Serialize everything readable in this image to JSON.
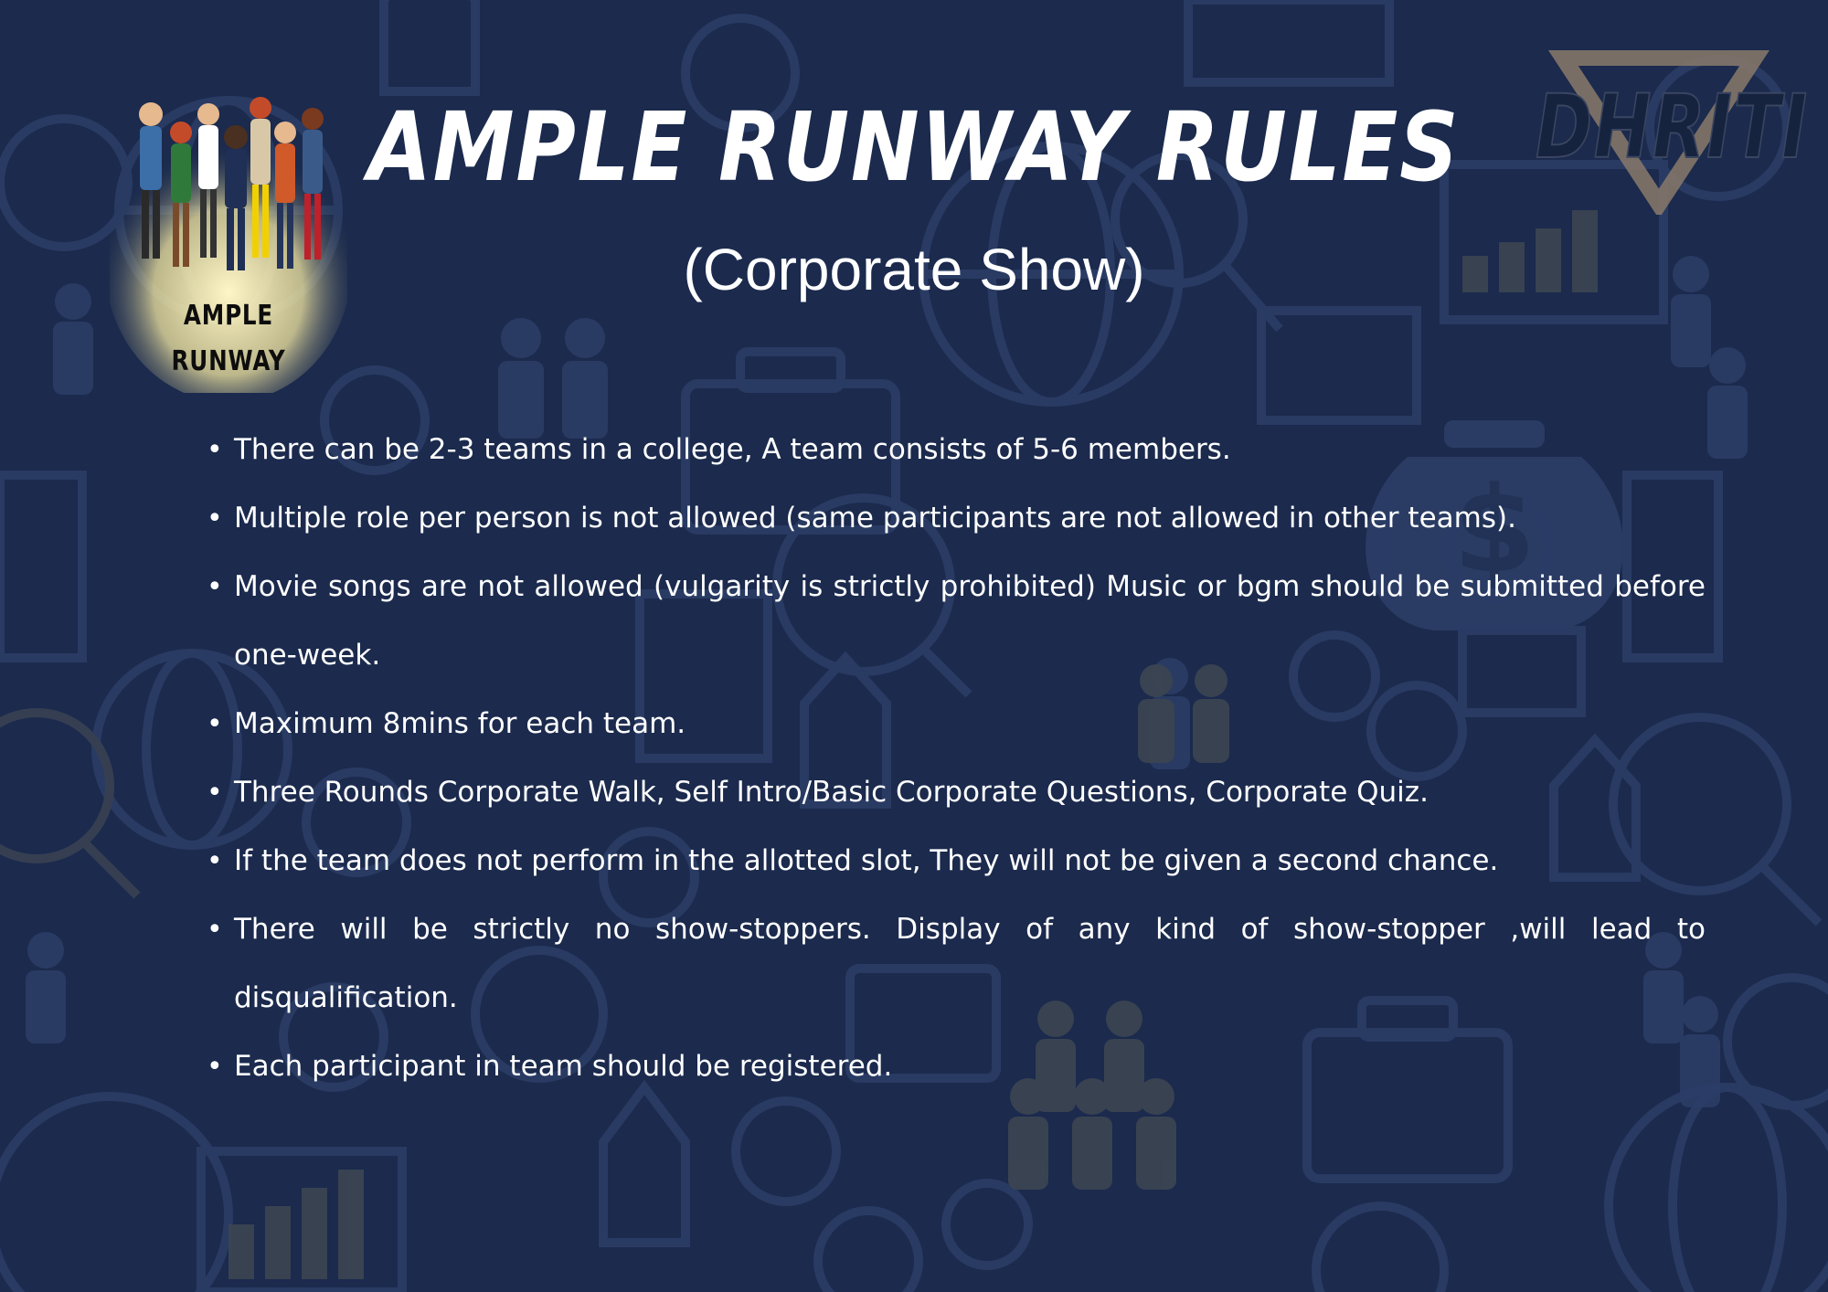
{
  "header": {
    "title": "AMPLE RUNWAY RULES",
    "subtitle": "(Corporate Show)"
  },
  "logos": {
    "left": {
      "line1": "AMPLE",
      "line2": "RUNWAY",
      "icon": "fashion-group-icon"
    },
    "right": {
      "text": "DHRITI",
      "icon": "triangle-icon"
    }
  },
  "rules": [
    "There can be 2-3 teams in a college, A team consists of 5-6 members.",
    "Multiple role per person is not allowed  (same participants are not allowed in other teams).",
    "Movie songs are not allowed (vulgarity is strictly prohibited) Music or bgm should be submitted before one-week.",
    "Maximum 8mins for each team.",
    "Three Rounds  Corporate Walk,  Self Intro/Basic Corporate Questions, Corporate Quiz.",
    "If the team does not perform in the allotted slot, They will not be given a second chance.",
    "There will be strictly no show-stoppers. Display  of any kind of show-stopper ,will lead to disqualification.",
    "Each participant in team should be registered."
  ],
  "colors": {
    "background": "#1b2a4d",
    "pattern": "#2b3d66",
    "pattern_gold": "#3c4450",
    "text": "#ffffff"
  }
}
